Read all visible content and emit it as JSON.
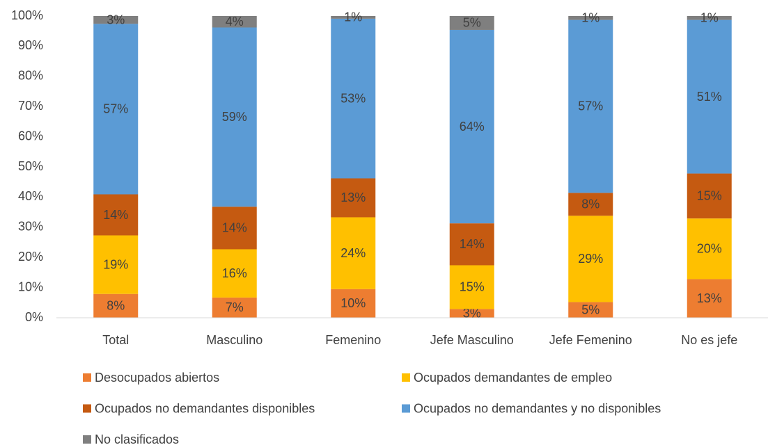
{
  "chart_data": {
    "type": "stacked_bar",
    "categories": [
      "Total",
      "Masculino",
      "Femenino",
      "Jefe Masculino",
      "Jefe Femenino",
      "No es jefe"
    ],
    "series": [
      {
        "name": "Desocupados abiertos",
        "color": "#ED7D31",
        "values": [
          7.9,
          6.7,
          9.5,
          2.9,
          5.2,
          12.8
        ],
        "value_labels": [
          "8%",
          "7%",
          "10%",
          "3%",
          "5%",
          "13%"
        ]
      },
      {
        "name": "Ocupados demandantes de empleo",
        "color": "#FFC000",
        "values": [
          19.4,
          16.0,
          23.8,
          14.5,
          28.6,
          20.1
        ],
        "value_labels": [
          "19%",
          "16%",
          "24%",
          "15%",
          "29%",
          "20%"
        ]
      },
      {
        "name": "Ocupados no demandantes disponibles",
        "color": "#C55A11",
        "values": [
          13.6,
          14.1,
          12.9,
          13.9,
          7.6,
          14.9
        ],
        "value_labels": [
          "14%",
          "14%",
          "13%",
          "14%",
          "8%",
          "15%"
        ]
      },
      {
        "name": "Ocupados no demandantes y no disponibles",
        "color": "#5B9BD5",
        "values": [
          56.5,
          59.4,
          52.9,
          64.1,
          57.3,
          50.9
        ],
        "value_labels": [
          "57%",
          "59%",
          "53%",
          "64%",
          "57%",
          "51%"
        ]
      },
      {
        "name": "No clasificados",
        "color": "#7F7F7F",
        "values": [
          2.6,
          3.8,
          0.9,
          4.6,
          1.3,
          1.3
        ],
        "value_labels": [
          "3%",
          "4%",
          "1%",
          "5%",
          "1%",
          "1%"
        ]
      }
    ],
    "ylim": [
      0,
      100
    ],
    "yticks": [
      {
        "value": 0,
        "label": "0%"
      },
      {
        "value": 10,
        "label": "10%"
      },
      {
        "value": 20,
        "label": "20%"
      },
      {
        "value": 30,
        "label": "30%"
      },
      {
        "value": 40,
        "label": "40%"
      },
      {
        "value": 50,
        "label": "50%"
      },
      {
        "value": 60,
        "label": "60%"
      },
      {
        "value": 70,
        "label": "70%"
      },
      {
        "value": 80,
        "label": "80%"
      },
      {
        "value": 90,
        "label": "90%"
      },
      {
        "value": 100,
        "label": "100%"
      }
    ],
    "grid": false,
    "legend": "bottom"
  }
}
